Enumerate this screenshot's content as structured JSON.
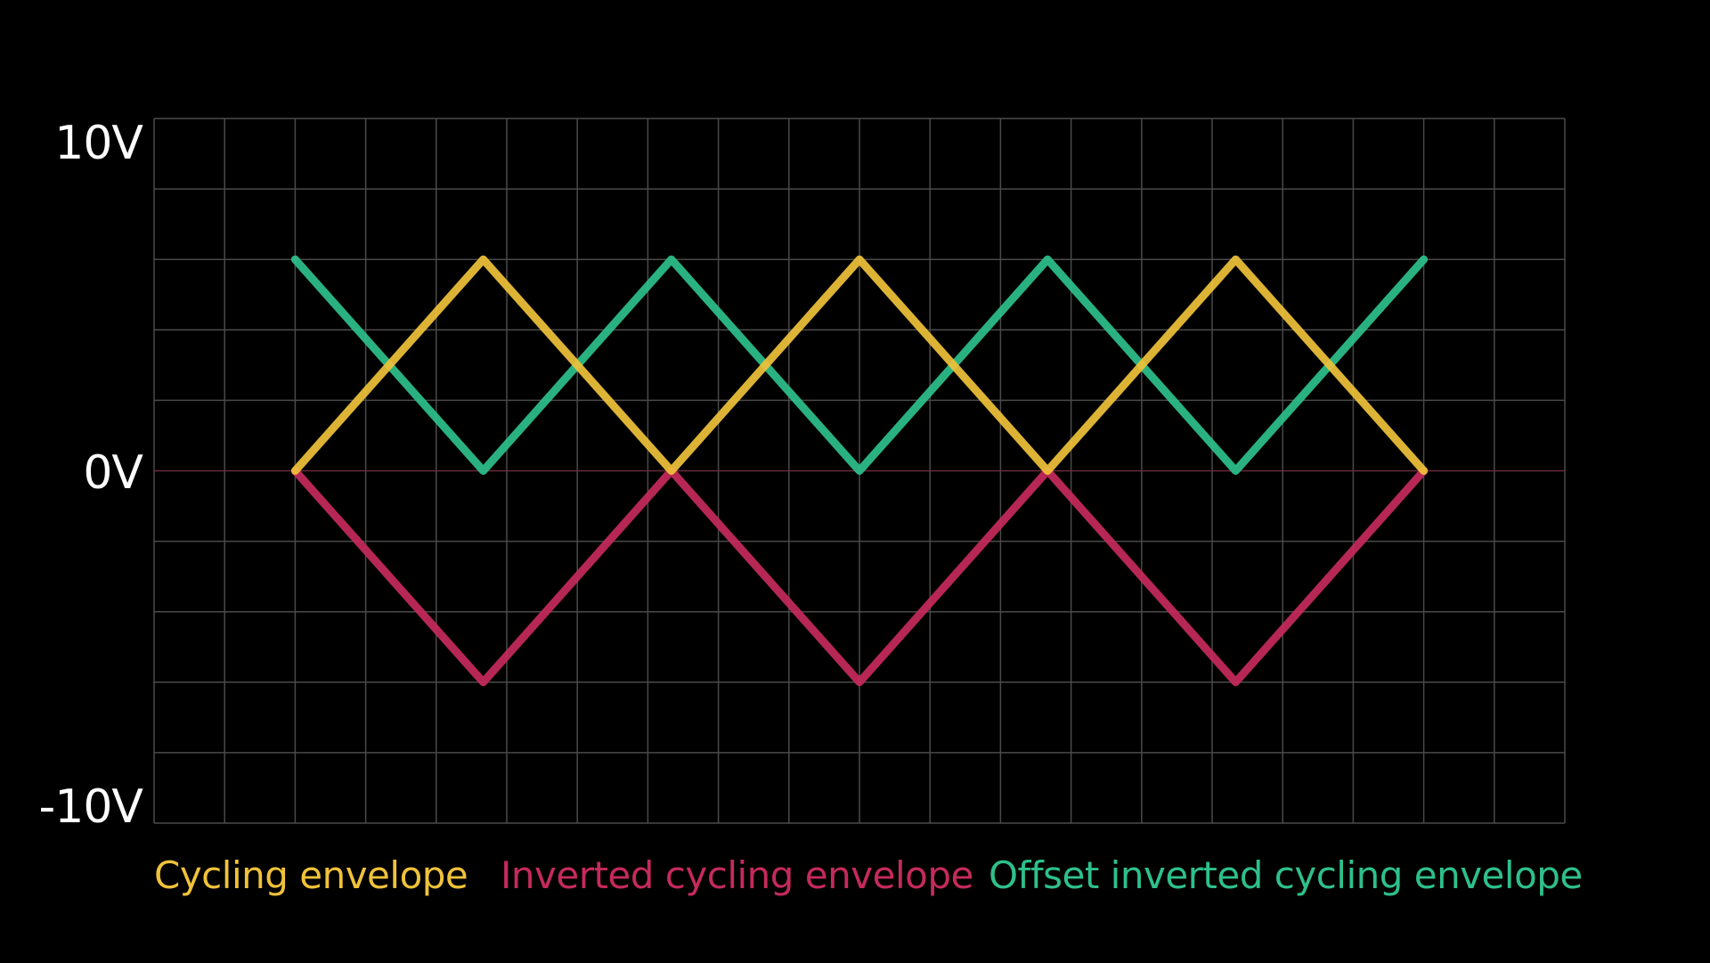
{
  "chart_data": {
    "type": "line",
    "y_tick_labels": [
      "10V",
      "0V",
      "-10V"
    ],
    "ylim": [
      -10,
      10
    ],
    "grid": true,
    "legend_position": "bottom",
    "x": [
      0,
      1,
      2,
      3,
      4,
      5,
      6
    ],
    "series": [
      {
        "name": "Cycling envelope",
        "color": "#f0c23a",
        "values": [
          0,
          6,
          0,
          6,
          0,
          6,
          0
        ]
      },
      {
        "name": "Inverted cycling envelope",
        "color": "#c52a5c",
        "values": [
          0,
          -6,
          0,
          -6,
          0,
          -6,
          0
        ]
      },
      {
        "name": "Offset inverted cycling envelope",
        "color": "#2ec08c",
        "values": [
          6,
          0,
          6,
          0,
          6,
          0,
          6
        ]
      }
    ]
  }
}
